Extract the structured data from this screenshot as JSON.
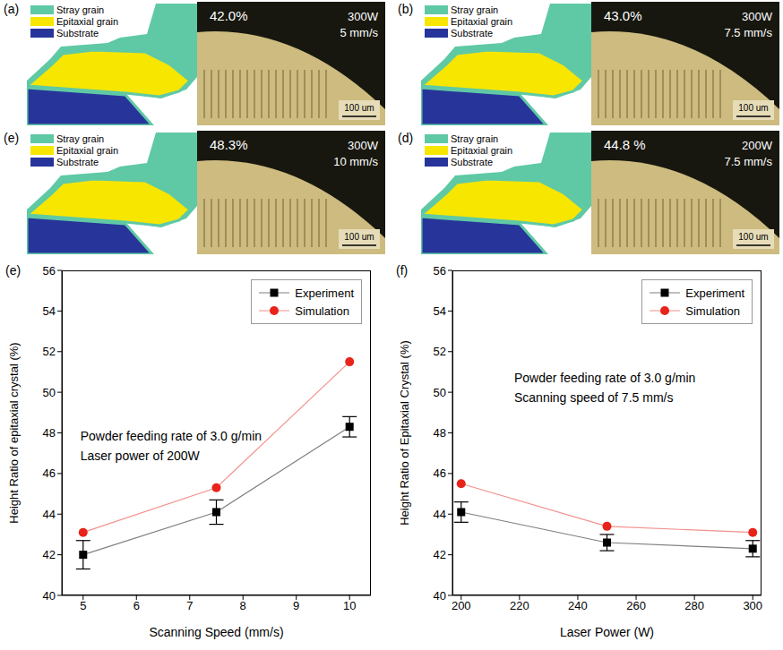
{
  "panels": [
    {
      "label": "(a)",
      "legend": [
        {
          "label": "Stray grain",
          "color": "#5fc9a5"
        },
        {
          "label": "Epitaxial grain",
          "color": "#f7e600"
        },
        {
          "label": "Substrate",
          "color": "#27359a"
        }
      ],
      "ratio": "42.0%",
      "power": "300W",
      "speed": "5 mm/s",
      "scale_bar": "100 um"
    },
    {
      "label": "(b)",
      "legend": [
        {
          "label": "Stray grain",
          "color": "#5fc9a5"
        },
        {
          "label": "Epitaxial grain",
          "color": "#f7e600"
        },
        {
          "label": "Substrate",
          "color": "#27359a"
        }
      ],
      "ratio": "43.0%",
      "power": "300W",
      "speed": "7.5 mm/s",
      "scale_bar": "100 um"
    },
    {
      "label": "(e)",
      "legend": [
        {
          "label": "Stray grain",
          "color": "#5fc9a5"
        },
        {
          "label": "Epitaxial grain",
          "color": "#f7e600"
        },
        {
          "label": "Substrate",
          "color": "#27359a"
        }
      ],
      "ratio": "48.3%",
      "power": "300W",
      "speed": "10 mm/s",
      "scale_bar": "100 um"
    },
    {
      "label": "(d)",
      "legend": [
        {
          "label": "Stray grain",
          "color": "#5fc9a5"
        },
        {
          "label": "Epitaxial grain",
          "color": "#f7e600"
        },
        {
          "label": "Substrate",
          "color": "#27359a"
        }
      ],
      "ratio": "44.8 %",
      "power": "200W",
      "speed": "7.5 mm/s",
      "scale_bar": "100 um"
    }
  ],
  "chart_data": [
    {
      "label": "(e)",
      "type": "line",
      "annotations": [
        "Powder feeding rate of 3.0 g/min",
        "Laser power of 200W"
      ],
      "x_label": "Scanning Speed (mm/s)",
      "y_label": "Height Ratio of epitaxial crystal (%)",
      "x": [
        5,
        7.5,
        10
      ],
      "xlim": [
        4.6,
        10.4
      ],
      "xticks": [
        5,
        6,
        7,
        8,
        9,
        10
      ],
      "ylim": [
        40,
        56
      ],
      "yticks": [
        40,
        42,
        44,
        46,
        48,
        50,
        52,
        54,
        56
      ],
      "legend": "top-right",
      "series": [
        {
          "name": "Experiment",
          "color": "#000000",
          "marker": "square",
          "values": [
            42.0,
            44.1,
            48.3
          ],
          "errors": [
            0.7,
            0.6,
            0.5
          ]
        },
        {
          "name": "Simulation",
          "color": "#e8231a",
          "marker": "circle",
          "values": [
            43.1,
            45.3,
            51.5
          ]
        }
      ]
    },
    {
      "label": "(f)",
      "type": "line",
      "annotations": [
        "Powder feeding rate of 3.0 g/min",
        "Scanning speed of 7.5 mm/s"
      ],
      "x_label": "Laser Power (W)",
      "y_label": "Height Ratio of Epitaxial Crystal (%)",
      "x": [
        200,
        250,
        300
      ],
      "xlim": [
        197,
        303
      ],
      "xticks": [
        200,
        220,
        240,
        260,
        280,
        300
      ],
      "ylim": [
        40,
        56
      ],
      "yticks": [
        40,
        42,
        44,
        46,
        48,
        50,
        52,
        54,
        56
      ],
      "legend": "top-right",
      "series": [
        {
          "name": "Experiment",
          "color": "#000000",
          "marker": "square",
          "values": [
            44.1,
            42.6,
            42.3
          ],
          "errors": [
            0.5,
            0.4,
            0.4
          ]
        },
        {
          "name": "Simulation",
          "color": "#e8231a",
          "marker": "circle",
          "values": [
            45.5,
            43.4,
            43.1
          ]
        }
      ]
    }
  ]
}
